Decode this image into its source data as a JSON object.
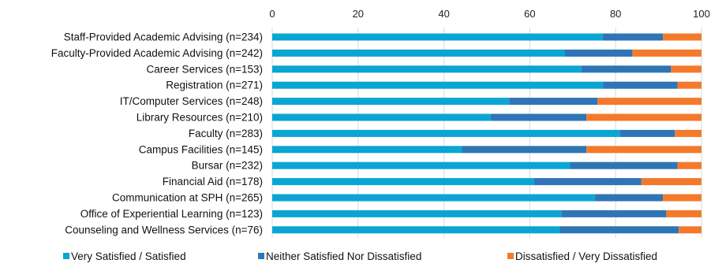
{
  "chart_data": {
    "type": "bar",
    "orientation": "horizontal",
    "stacked": true,
    "title": "",
    "xlabel": "",
    "ylabel": "",
    "xlim": [
      0,
      100
    ],
    "x_ticks": [
      0,
      20,
      40,
      60,
      80,
      100
    ],
    "x_axis_position": "top",
    "grid": true,
    "legend_position": "bottom",
    "categories": [
      "Staff-Provided Academic Advising (n=234)",
      "Faculty-Provided Academic Advising (n=242)",
      "Career Services  (n=153)",
      "Registration  (n=271)",
      "IT/Computer Services  (n=248)",
      "Library Resources  (n=210)",
      "Faculty  (n=283)",
      "Campus Facilities  (n=145)",
      "Bursar  (n=232)",
      "Financial Aid  (n=178)",
      "Communication at SPH  (n=265)",
      "Office of Experiential Learning  (n=123)",
      "Counseling and Wellness Services (n=76)"
    ],
    "series": [
      {
        "name": "Very Satisfied / Satisfied",
        "color": "#0aa5d3",
        "values": [
          77.0,
          68.2,
          72.0,
          77.1,
          55.2,
          50.9,
          81.0,
          44.2,
          69.4,
          61.0,
          75.2,
          67.4,
          67.0
        ]
      },
      {
        "name": "Neither Satisfied Nor Dissatisfied",
        "color": "#2e75b6",
        "values": [
          14.0,
          15.7,
          20.9,
          17.3,
          20.6,
          22.3,
          12.8,
          29.0,
          25.0,
          25.0,
          15.8,
          24.4,
          27.7
        ]
      },
      {
        "name": "Dissatisfied / Very Dissatisfied",
        "color": "#f47a2b",
        "values": [
          9.0,
          16.1,
          7.1,
          5.6,
          24.2,
          26.8,
          6.2,
          26.8,
          5.6,
          14.0,
          9.0,
          8.2,
          5.3
        ]
      }
    ]
  }
}
